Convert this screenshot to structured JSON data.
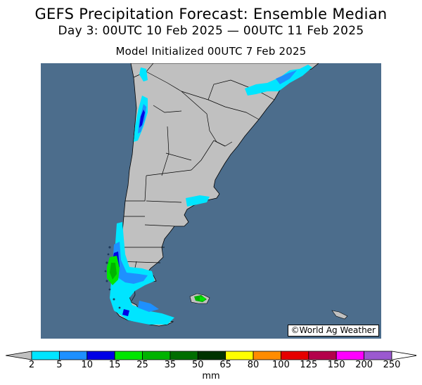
{
  "title": "GEFS Precipitation Forecast: Ensemble Median",
  "subtitle": "Day 3: 00UTC 10 Feb 2025 — 00UTC 11 Feb 2025",
  "init_line": "Model Initialized 00UTC 7 Feb 2025",
  "credit": "©World Ag Weather",
  "legend": {
    "unit": "mm",
    "ticks": [
      "2",
      "5",
      "10",
      "15",
      "25",
      "35",
      "50",
      "65",
      "80",
      "100",
      "125",
      "150",
      "200",
      "250"
    ],
    "colors": [
      "#00e5ff",
      "#1e90ff",
      "#0000e6",
      "#00e600",
      "#00b300",
      "#006e00",
      "#003300",
      "#ffff00",
      "#ff8c00",
      "#e60000",
      "#b4004b",
      "#ff00ff",
      "#9b59d0"
    ],
    "under_color": "#c0c0c0",
    "over_color": "#ffffff"
  },
  "map": {
    "ocean_color": "#4c6d8c",
    "land_color": "#c0c0c0",
    "border_color": "#000000"
  }
}
